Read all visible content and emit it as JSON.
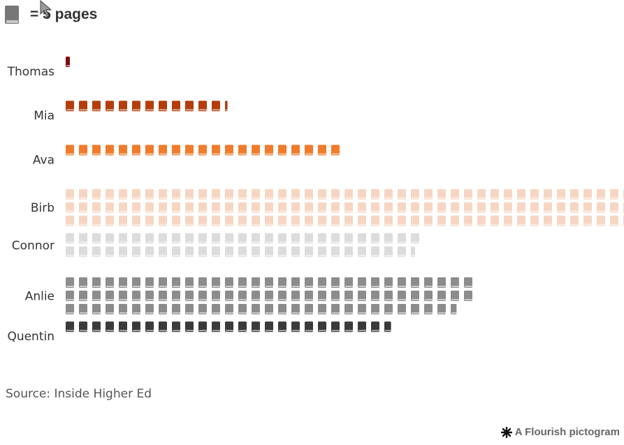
{
  "legend": {
    "icon": "book-icon",
    "label": "= 5 pages"
  },
  "chart_data": {
    "type": "pictogram",
    "unit": 5,
    "units_per_row": 43,
    "categories": [
      "Thomas",
      "Mia",
      "Ava",
      "Birb",
      "Connor",
      "Anlie",
      "Quentin"
    ],
    "icons": [
      0.5,
      12.3,
      21,
      129,
      53.5,
      91.7,
      24.8
    ],
    "values": [
      2.5,
      61.5,
      105,
      645,
      267.5,
      458.5,
      124
    ],
    "colors": [
      "#7f0d0d",
      "#b33d0b",
      "#f07b2a",
      "#f6d6c3",
      "#dcdcdc",
      "#8c8c8c",
      "#3a3a3a"
    ]
  },
  "source": "Source: Inside Higher Ed",
  "credit": {
    "icon": "flourish-logo-icon",
    "label": "A Flourish pictogram"
  }
}
